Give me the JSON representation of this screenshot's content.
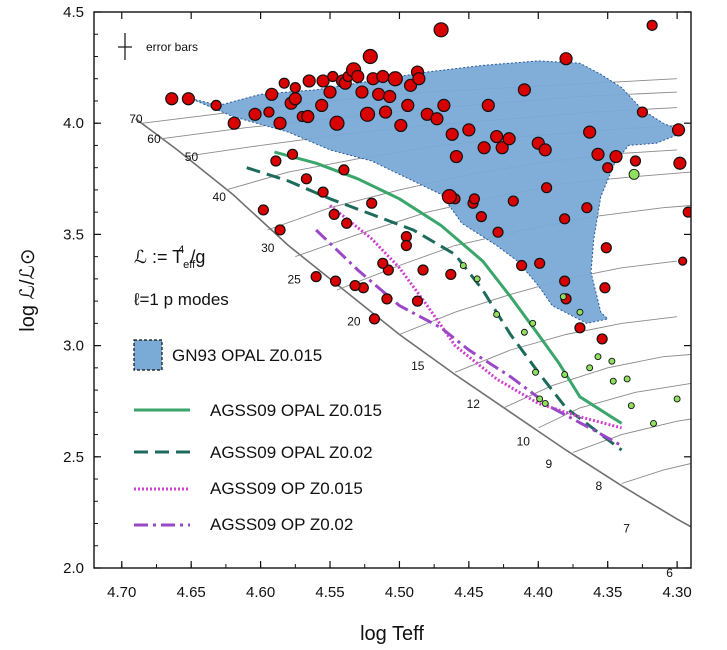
{
  "chart_data": {
    "type": "scatter",
    "xlabel": "log Teff",
    "ylabel": "log ℒ/ℒ⊙",
    "xlim": [
      4.72,
      4.29
    ],
    "ylim": [
      2.0,
      4.5
    ],
    "x_ticks": [
      "4.70",
      "4.65",
      "4.60",
      "4.55",
      "4.50",
      "4.45",
      "4.40",
      "4.35",
      "4.30"
    ],
    "x_tick_values": [
      4.7,
      4.65,
      4.6,
      4.55,
      4.5,
      4.45,
      4.4,
      4.35,
      4.3
    ],
    "y_ticks": [
      "2.0",
      "2.5",
      "3.0",
      "3.5",
      "4.0",
      "4.5"
    ],
    "y_tick_values": [
      2.0,
      2.5,
      3.0,
      3.5,
      4.0,
      4.5
    ],
    "grid": false,
    "annotations": {
      "error_bars": "error bars",
      "definition": "ℒ := T",
      "definition_sup": "4",
      "definition_sub": "eff",
      "definition_tail": "/g",
      "modes": "ℓ=1 p modes"
    },
    "mass_labels": [
      {
        "text": "70",
        "x": 4.685,
        "y": 4.0
      },
      {
        "text": "60",
        "x": 4.672,
        "y": 3.91
      },
      {
        "text": "50",
        "x": 4.645,
        "y": 3.83
      },
      {
        "text": "40",
        "x": 4.625,
        "y": 3.65
      },
      {
        "text": "30",
        "x": 4.59,
        "y": 3.42
      },
      {
        "text": "25",
        "x": 4.571,
        "y": 3.28
      },
      {
        "text": "20",
        "x": 4.528,
        "y": 3.09
      },
      {
        "text": "15",
        "x": 4.482,
        "y": 2.89
      },
      {
        "text": "12",
        "x": 4.442,
        "y": 2.72
      },
      {
        "text": "10",
        "x": 4.406,
        "y": 2.55
      },
      {
        "text": "9",
        "x": 4.39,
        "y": 2.45
      },
      {
        "text": "8",
        "x": 4.354,
        "y": 2.35
      },
      {
        "text": "7",
        "x": 4.334,
        "y": 2.16
      },
      {
        "text": "6",
        "x": 4.303,
        "y": 1.96
      }
    ],
    "legend": {
      "shaded": "GN93 OPAL Z0.015",
      "lines": [
        {
          "name": "AGSS09 OPAL Z0.015",
          "color": "#3aa66a",
          "style": "solid"
        },
        {
          "name": "AGSS09 OPAL Z0.02",
          "color": "#1d6b5c",
          "style": "dashed"
        },
        {
          "name": "AGSS09 OP Z0.015",
          "color": "#d040d0",
          "style": "dotted"
        },
        {
          "name": "AGSS09 OP Z0.02",
          "color": "#9a48c8",
          "style": "dashdot"
        }
      ]
    },
    "colors": {
      "shaded_fill": "#7aaad6",
      "shaded_edge": "#2a5a9a",
      "tracks": "#8a8a8a",
      "zams": "#707070",
      "red_points": "#d80000",
      "green_points": "#90e060"
    },
    "shaded_region": [
      [
        4.65,
        4.11
      ],
      [
        4.63,
        4.08
      ],
      [
        4.6,
        4.13
      ],
      [
        4.56,
        4.15
      ],
      [
        4.52,
        4.19
      ],
      [
        4.48,
        4.23
      ],
      [
        4.44,
        4.26
      ],
      [
        4.4,
        4.28
      ],
      [
        4.37,
        4.27
      ],
      [
        4.355,
        4.22
      ],
      [
        4.34,
        4.16
      ],
      [
        4.325,
        4.06
      ],
      [
        4.31,
        4.0
      ],
      [
        4.295,
        3.96
      ],
      [
        4.315,
        3.91
      ],
      [
        4.335,
        3.9
      ],
      [
        4.345,
        3.82
      ],
      [
        4.355,
        3.67
      ],
      [
        4.36,
        3.48
      ],
      [
        4.362,
        3.33
      ],
      [
        4.355,
        3.15
      ],
      [
        4.35,
        3.12
      ],
      [
        4.365,
        3.1
      ],
      [
        4.39,
        3.18
      ],
      [
        4.4,
        3.27
      ],
      [
        4.415,
        3.38
      ],
      [
        4.43,
        3.45
      ],
      [
        4.455,
        3.55
      ],
      [
        4.47,
        3.68
      ],
      [
        4.49,
        3.74
      ],
      [
        4.52,
        3.83
      ],
      [
        4.55,
        3.88
      ],
      [
        4.58,
        3.96
      ],
      [
        4.62,
        4.03
      ],
      [
        4.65,
        4.11
      ]
    ],
    "series": [
      {
        "name": "AGSS09 OPAL Z0.015",
        "x": [
          4.59,
          4.56,
          4.53,
          4.5,
          4.47,
          4.44,
          4.42,
          4.4,
          4.385,
          4.37,
          4.34
        ],
        "y": [
          3.87,
          3.82,
          3.75,
          3.66,
          3.54,
          3.38,
          3.22,
          3.05,
          2.92,
          2.77,
          2.65
        ]
      },
      {
        "name": "AGSS09 OPAL Z0.02",
        "x": [
          4.61,
          4.58,
          4.55,
          4.52,
          4.49,
          4.46,
          4.44,
          4.42,
          4.4,
          4.38,
          4.34
        ],
        "y": [
          3.8,
          3.74,
          3.66,
          3.59,
          3.52,
          3.41,
          3.25,
          3.05,
          2.88,
          2.72,
          2.53
        ]
      },
      {
        "name": "AGSS09 OP Z0.015",
        "x": [
          4.55,
          4.52,
          4.5,
          4.48,
          4.46,
          4.43,
          4.4,
          4.37,
          4.34
        ],
        "y": [
          3.63,
          3.48,
          3.35,
          3.18,
          3.0,
          2.85,
          2.74,
          2.68,
          2.63
        ]
      },
      {
        "name": "AGSS09 OP Z0.02",
        "x": [
          4.56,
          4.53,
          4.5,
          4.47,
          4.45,
          4.42,
          4.39,
          4.36,
          4.34
        ],
        "y": [
          3.52,
          3.34,
          3.18,
          3.08,
          2.98,
          2.86,
          2.72,
          2.62,
          2.55
        ]
      }
    ],
    "red_points": [
      [
        4.664,
        4.11,
        6
      ],
      [
        4.652,
        4.11,
        6
      ],
      [
        4.632,
        4.08,
        5
      ],
      [
        4.619,
        4.0,
        6
      ],
      [
        4.604,
        4.04,
        6
      ],
      [
        4.594,
        4.05,
        5
      ],
      [
        4.592,
        4.13,
        6
      ],
      [
        4.586,
        4.0,
        6
      ],
      [
        4.583,
        4.18,
        5
      ],
      [
        4.578,
        4.09,
        6
      ],
      [
        4.575,
        4.11,
        6
      ],
      [
        4.575,
        4.16,
        5
      ],
      [
        4.57,
        4.03,
        5
      ],
      [
        4.566,
        4.03,
        6
      ],
      [
        4.565,
        4.19,
        6
      ],
      [
        4.556,
        4.08,
        6
      ],
      [
        4.555,
        4.19,
        6
      ],
      [
        4.55,
        4.14,
        6
      ],
      [
        4.548,
        4.21,
        5
      ],
      [
        4.545,
        4.0,
        7
      ],
      [
        4.541,
        4.19,
        6
      ],
      [
        4.539,
        4.18,
        6
      ],
      [
        4.537,
        4.21,
        5
      ],
      [
        4.533,
        4.24,
        7
      ],
      [
        4.53,
        4.21,
        6
      ],
      [
        4.527,
        4.14,
        6
      ],
      [
        4.523,
        4.04,
        7
      ],
      [
        4.521,
        4.3,
        7
      ],
      [
        4.519,
        4.2,
        6
      ],
      [
        4.515,
        4.13,
        6
      ],
      [
        4.512,
        4.21,
        6
      ],
      [
        4.51,
        4.05,
        6
      ],
      [
        4.507,
        4.12,
        6
      ],
      [
        4.503,
        4.2,
        7
      ],
      [
        4.499,
        3.99,
        6
      ],
      [
        4.494,
        4.08,
        6
      ],
      [
        4.492,
        4.17,
        6
      ],
      [
        4.487,
        4.23,
        6
      ],
      [
        4.486,
        4.2,
        6
      ],
      [
        4.48,
        4.04,
        6
      ],
      [
        4.473,
        4.02,
        6
      ],
      [
        4.47,
        4.42,
        7
      ],
      [
        4.468,
        4.08,
        6
      ],
      [
        4.462,
        3.95,
        6
      ],
      [
        4.459,
        3.85,
        6
      ],
      [
        4.45,
        3.97,
        6
      ],
      [
        4.439,
        3.89,
        6
      ],
      [
        4.436,
        4.08,
        6
      ],
      [
        4.43,
        3.94,
        6
      ],
      [
        4.426,
        3.89,
        6
      ],
      [
        4.421,
        3.93,
        6
      ],
      [
        4.41,
        4.15,
        6
      ],
      [
        4.4,
        3.91,
        6
      ],
      [
        4.395,
        3.88,
        6
      ],
      [
        4.38,
        4.29,
        6
      ],
      [
        4.363,
        3.96,
        6
      ],
      [
        4.357,
        3.86,
        6
      ],
      [
        4.35,
        3.8,
        5
      ],
      [
        4.344,
        3.85,
        6
      ],
      [
        4.33,
        3.83,
        5
      ],
      [
        4.325,
        4.05,
        5
      ],
      [
        4.318,
        4.44,
        5
      ],
      [
        4.299,
        3.97,
        6
      ],
      [
        4.298,
        3.82,
        6
      ],
      [
        4.292,
        3.6,
        5
      ],
      [
        4.296,
        3.38,
        4
      ],
      [
        4.351,
        3.44,
        5
      ],
      [
        4.352,
        3.26,
        5
      ],
      [
        4.381,
        3.29,
        5
      ],
      [
        4.38,
        3.21,
        5
      ],
      [
        4.37,
        3.08,
        5
      ],
      [
        4.354,
        3.03,
        5
      ],
      [
        4.399,
        3.37,
        5
      ],
      [
        4.412,
        3.36,
        5
      ],
      [
        4.381,
        3.57,
        5
      ],
      [
        4.365,
        3.62,
        5
      ],
      [
        4.394,
        3.71,
        5
      ],
      [
        4.418,
        3.65,
        5
      ],
      [
        4.429,
        3.51,
        5
      ],
      [
        4.441,
        3.58,
        5
      ],
      [
        4.447,
        3.64,
        5
      ],
      [
        4.446,
        3.66,
        5
      ],
      [
        4.46,
        3.66,
        5
      ],
      [
        4.464,
        3.67,
        7
      ],
      [
        4.463,
        3.32,
        5
      ],
      [
        4.483,
        3.34,
        5
      ],
      [
        4.487,
        3.2,
        5
      ],
      [
        4.509,
        3.21,
        5
      ],
      [
        4.518,
        3.12,
        5
      ],
      [
        4.526,
        3.26,
        5
      ],
      [
        4.532,
        3.27,
        5
      ],
      [
        4.546,
        3.29,
        5
      ],
      [
        4.56,
        3.31,
        5
      ],
      [
        4.586,
        3.52,
        5
      ],
      [
        4.598,
        3.61,
        5
      ],
      [
        4.589,
        3.83,
        5
      ],
      [
        4.577,
        3.86,
        5
      ],
      [
        4.567,
        3.75,
        5
      ],
      [
        4.555,
        3.69,
        5
      ],
      [
        4.54,
        3.79,
        5
      ],
      [
        4.52,
        3.64,
        5
      ],
      [
        4.495,
        3.49,
        5
      ],
      [
        4.547,
        3.59,
        5
      ],
      [
        4.538,
        3.55,
        5
      ],
      [
        4.508,
        3.34,
        5
      ],
      [
        4.495,
        3.45,
        5
      ],
      [
        4.512,
        3.37,
        5
      ]
    ],
    "green_points": [
      [
        4.331,
        3.77,
        5
      ],
      [
        4.382,
        3.22,
        3
      ],
      [
        4.37,
        3.15,
        3
      ],
      [
        4.357,
        2.95,
        3
      ],
      [
        4.347,
        2.93,
        3
      ],
      [
        4.363,
        2.9,
        3
      ],
      [
        4.381,
        2.87,
        3
      ],
      [
        4.404,
        3.1,
        3
      ],
      [
        4.41,
        3.06,
        3
      ],
      [
        4.43,
        3.14,
        3
      ],
      [
        4.444,
        3.3,
        3
      ],
      [
        4.454,
        3.36,
        3
      ],
      [
        4.402,
        2.88,
        3
      ],
      [
        4.399,
        2.76,
        3
      ],
      [
        4.395,
        2.74,
        3
      ],
      [
        4.317,
        2.65,
        3
      ],
      [
        4.333,
        2.73,
        3
      ],
      [
        4.336,
        2.85,
        3
      ],
      [
        4.346,
        2.84,
        3
      ],
      [
        4.3,
        2.76,
        3
      ]
    ]
  }
}
